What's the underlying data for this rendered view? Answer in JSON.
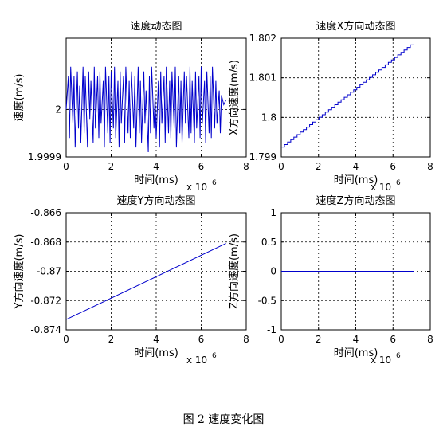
{
  "caption": "图 2  速度变化图",
  "colors": {
    "line": "#0000cc",
    "axis": "#000000",
    "grid": "#000000",
    "background": "#ffffff"
  },
  "chart_data": [
    {
      "type": "line",
      "title": "速度动态图",
      "xlabel": "时间(ms)",
      "ylabel": "速度(m/s)",
      "x_multiplier": "x 10",
      "x_multiplier_exp": "6",
      "xlim": [
        0,
        8
      ],
      "ylim": [
        1.9999,
        2.00015
      ],
      "xticks": [
        "0",
        "2",
        "4",
        "6",
        "8"
      ],
      "xtick_values": [
        0,
        2,
        4,
        6,
        8
      ],
      "yticks": [
        "1.9999",
        "2"
      ],
      "ytick_values": [
        1.9999,
        2.0
      ],
      "grid": true,
      "series": [
        {
          "x": [
            0.0,
            0.1,
            0.15,
            0.2,
            0.3,
            0.35,
            0.4,
            0.5,
            0.55,
            0.6,
            0.65,
            0.75,
            0.8,
            0.85,
            0.95,
            1.0,
            1.05,
            1.1,
            1.2,
            1.25,
            1.3,
            1.4,
            1.45,
            1.5,
            1.55,
            1.65,
            1.7,
            1.75,
            1.85,
            1.9,
            1.95,
            2.0,
            2.1,
            2.15,
            2.2,
            2.3,
            2.35,
            2.4,
            2.45,
            2.55,
            2.6,
            2.65,
            2.75,
            2.8,
            2.85,
            2.9,
            3.0,
            3.05,
            3.1,
            3.2,
            3.25,
            3.3,
            3.35,
            3.45,
            3.5,
            3.55,
            3.65,
            3.7,
            3.75,
            3.8,
            3.9,
            3.95,
            4.0,
            4.1,
            4.15,
            4.2,
            4.25,
            4.35,
            4.4,
            4.45,
            4.55,
            4.6,
            4.65,
            4.7,
            4.8,
            4.85,
            4.9,
            5.0,
            5.05,
            5.1,
            5.15,
            5.25,
            5.3,
            5.35,
            5.45,
            5.5,
            5.55,
            5.6,
            5.7,
            5.75,
            5.8,
            5.9,
            5.95,
            6.0,
            6.05,
            6.15,
            6.2,
            6.25,
            6.35,
            6.4,
            6.45,
            6.5,
            6.6,
            6.65,
            6.7,
            6.8,
            6.85,
            6.9,
            7.0,
            7.1
          ],
          "y": [
            2.0,
            2.00007,
            1.99994,
            2.00009,
            1.99997,
            2.00007,
            1.99992,
            2.00008,
            1.99996,
            2.00005,
            1.99993,
            2.00009,
            1.99995,
            2.00007,
            1.99992,
            2.00008,
            1.99998,
            2.00006,
            1.99993,
            2.00009,
            1.99996,
            2.00007,
            1.99994,
            2.00008,
            1.99997,
            2.00006,
            1.99992,
            2.00009,
            1.99995,
            2.00007,
            1.99993,
            2.00008,
            1.99996,
            2.00009,
            1.99994,
            2.00006,
            1.99992,
            2.00008,
            1.99997,
            2.00007,
            1.99993,
            2.00009,
            1.99995,
            2.00006,
            1.99994,
            2.00008,
            1.99996,
            2.00007,
            1.99992,
            2.00009,
            1.99995,
            2.00006,
            1.99993,
            2.00008,
            1.99997,
            2.00004,
            1.99991,
            2.00007,
            1.99995,
            2.00009,
            1.99996,
            2.00003,
            1.99994,
            2.00006,
            1.99992,
            2.00008,
            1.99997,
            2.00007,
            1.99993,
            2.00009,
            1.99995,
            2.00006,
            1.99994,
            2.00008,
            1.99996,
            2.00009,
            1.99992,
            2.00007,
            1.99995,
            2.00006,
            1.99993,
            2.00008,
            1.99997,
            2.00007,
            1.99994,
            2.00009,
            1.99995,
            2.00006,
            1.99993,
            2.00008,
            1.99996,
            2.00007,
            1.99994,
            2.00009,
            1.99997,
            2.00006,
            1.99993,
            2.00008,
            1.99995,
            2.00007,
            1.99994,
            2.00009,
            1.99996,
            2.00006,
            1.99997,
            2.00004,
            1.99995,
            2.00003,
            2.00001,
            2.00002
          ]
        }
      ]
    },
    {
      "type": "line",
      "title": "速度X方向动态图",
      "xlabel": "时间(ms)",
      "ylabel": "X方向速度(m/s)",
      "x_multiplier": "x 10",
      "x_multiplier_exp": "6",
      "xlim": [
        0,
        8
      ],
      "ylim": [
        1.799,
        1.802
      ],
      "xticks": [
        "0",
        "2",
        "4",
        "6",
        "8"
      ],
      "xtick_values": [
        0,
        2,
        4,
        6,
        8
      ],
      "yticks": [
        "1.799",
        "1.8",
        "1.801",
        "1.802"
      ],
      "ytick_values": [
        1.799,
        1.8,
        1.801,
        1.802
      ],
      "grid": true,
      "steps": 42,
      "series": [
        {
          "x": [
            0.0,
            7.1
          ],
          "y": [
            1.79925,
            1.80183
          ]
        }
      ]
    },
    {
      "type": "line",
      "title": "速度Y方向动态图",
      "xlabel": "时间(ms)",
      "ylabel": "Y方向速度(m/s)",
      "x_multiplier": "x 10",
      "x_multiplier_exp": "6",
      "xlim": [
        0,
        8
      ],
      "ylim": [
        -0.874,
        -0.866
      ],
      "xticks": [
        "0",
        "2",
        "4",
        "6",
        "8"
      ],
      "xtick_values": [
        0,
        2,
        4,
        6,
        8
      ],
      "yticks": [
        "-0.874",
        "-0.872",
        "-0.87",
        "-0.868",
        "-0.866"
      ],
      "ytick_values": [
        -0.874,
        -0.872,
        -0.87,
        -0.868,
        -0.866
      ],
      "grid": true,
      "series": [
        {
          "x": [
            0.0,
            7.1
          ],
          "y": [
            -0.8733,
            -0.8681
          ]
        }
      ]
    },
    {
      "type": "line",
      "title": "速度Z方向动态图",
      "xlabel": "时间(ms)",
      "ylabel": "Z方向速度(m/s)",
      "x_multiplier": "x 10",
      "x_multiplier_exp": "6",
      "xlim": [
        0,
        8
      ],
      "ylim": [
        -1,
        1
      ],
      "xticks": [
        "0",
        "2",
        "4",
        "6",
        "8"
      ],
      "xtick_values": [
        0,
        2,
        4,
        6,
        8
      ],
      "yticks": [
        "-1",
        "-0.5",
        "0",
        "0.5",
        "1"
      ],
      "ytick_values": [
        -1,
        -0.5,
        0,
        0.5,
        1
      ],
      "grid": true,
      "series": [
        {
          "x": [
            0.0,
            7.1
          ],
          "y": [
            0,
            0
          ]
        }
      ]
    }
  ]
}
